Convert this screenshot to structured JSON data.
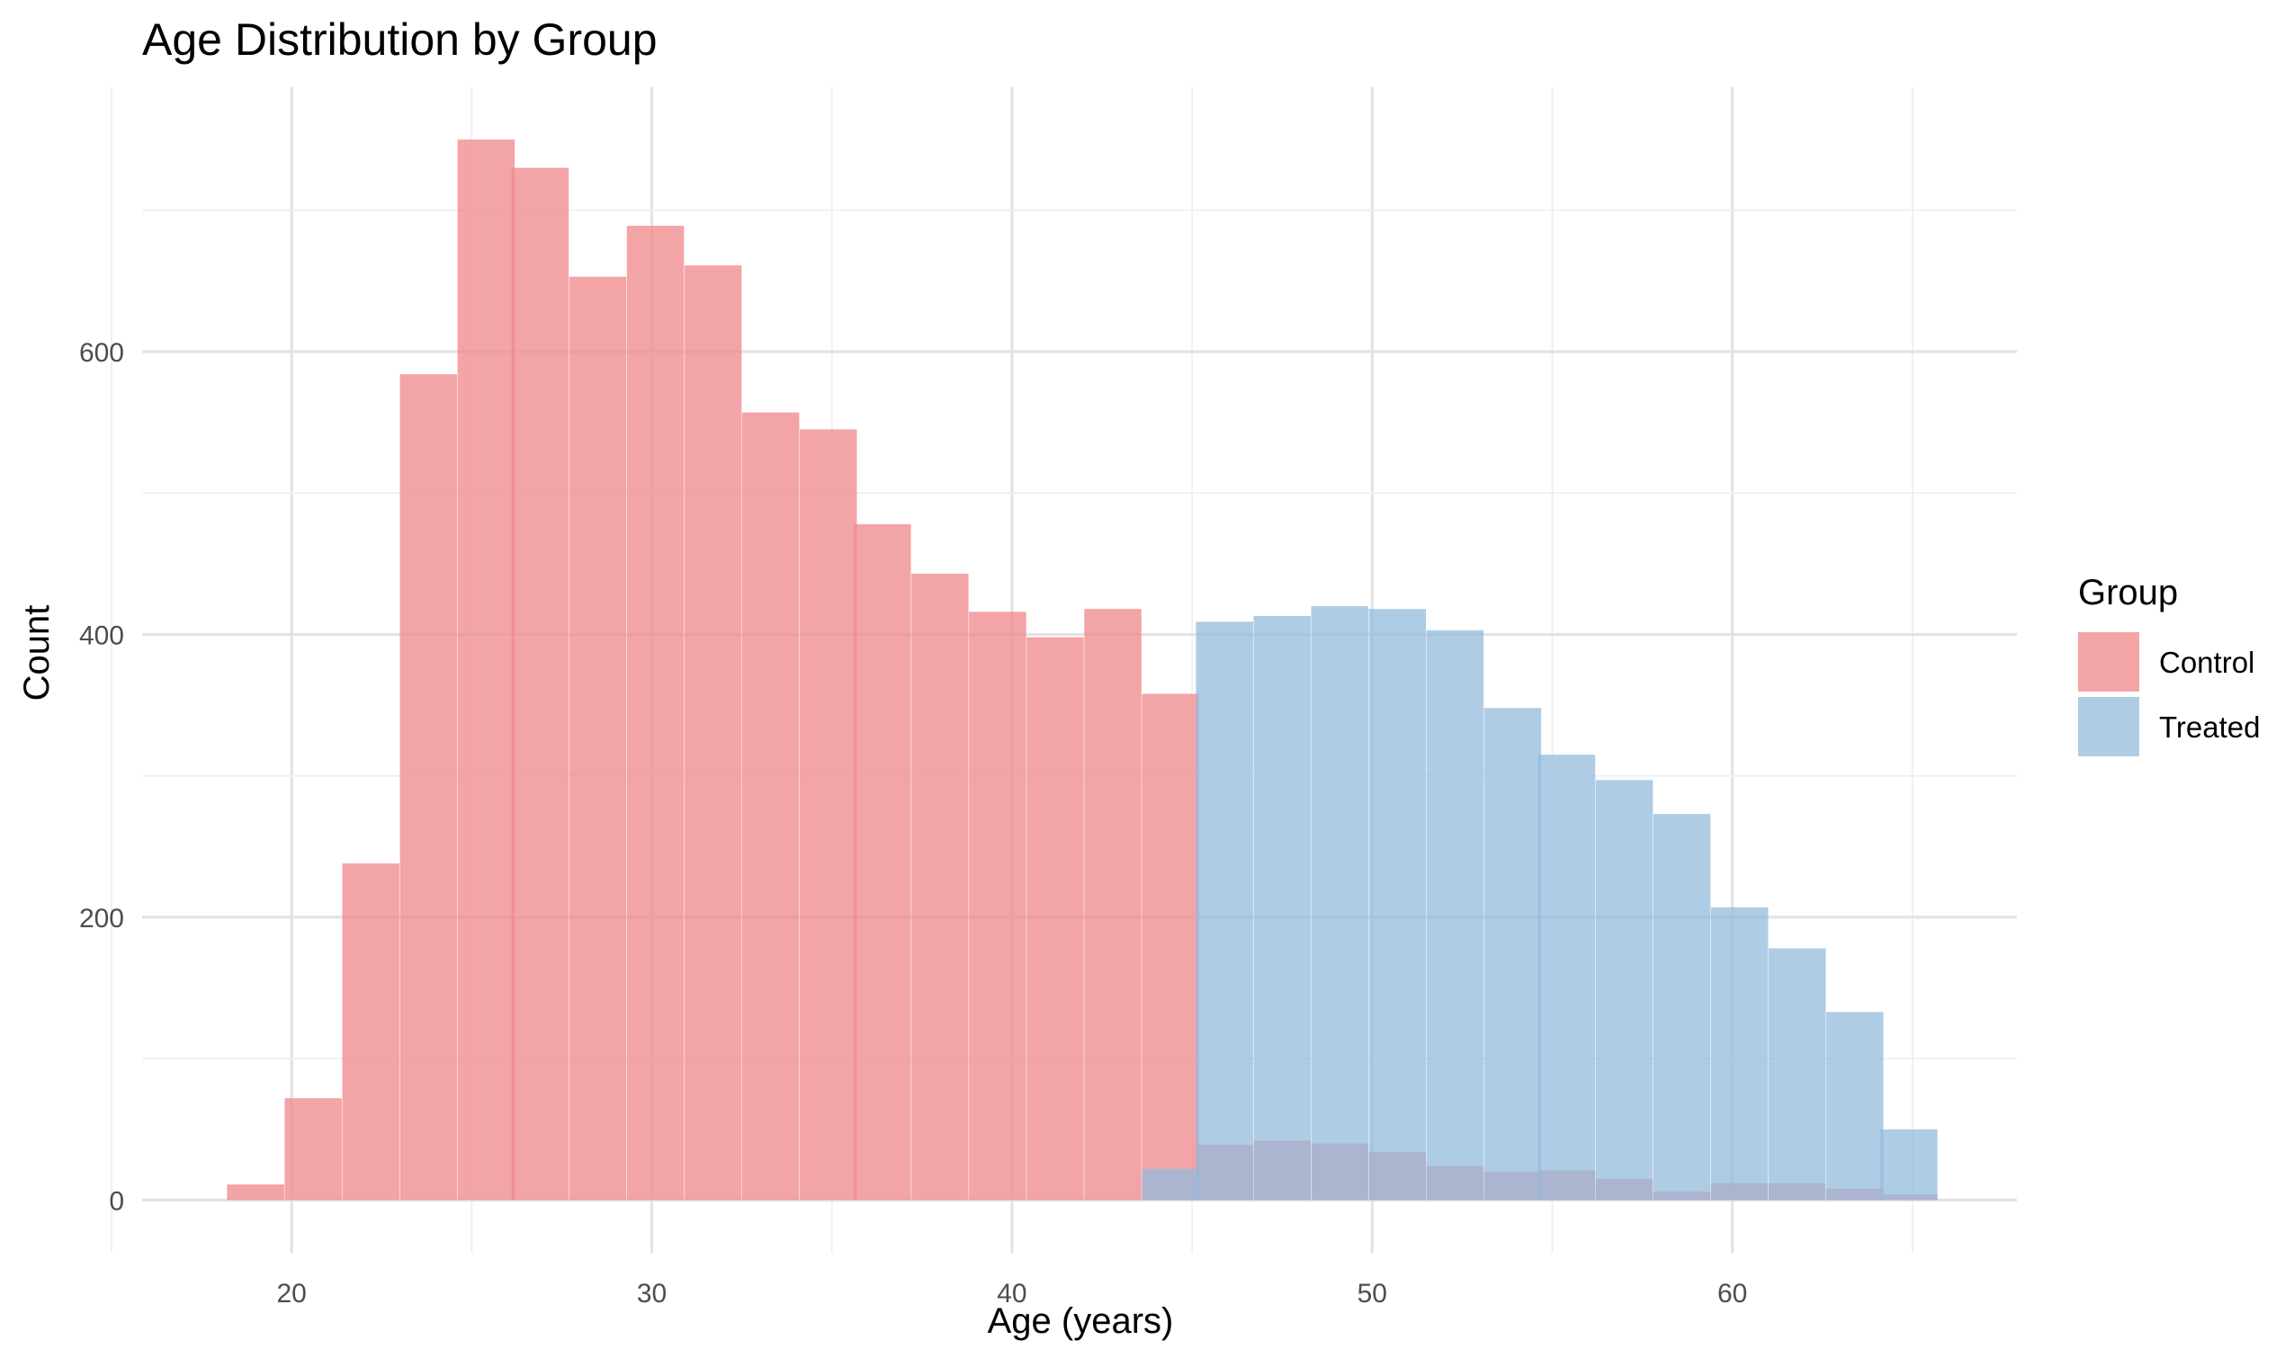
{
  "chart_data": {
    "type": "bar",
    "subtype": "overlaid-histogram",
    "title": "Age Distribution by Group",
    "xlabel": "Age (years)",
    "ylabel": "Count",
    "xlim": [
      15.85,
      67.9
    ],
    "ylim": [
      -37.3,
      787
    ],
    "x_ticks": [
      20,
      30,
      40,
      50,
      60
    ],
    "y_ticks": [
      0,
      200,
      400,
      600
    ],
    "grid": true,
    "legend": {
      "title": "Group",
      "position": "right"
    },
    "bin_width": 1.586,
    "series": [
      {
        "name": "Control",
        "color": "#ef8a8d",
        "opacity": 0.78,
        "bins": [
          {
            "x": 19.0,
            "count": 11
          },
          {
            "x": 20.6,
            "count": 72
          },
          {
            "x": 22.2,
            "count": 238
          },
          {
            "x": 23.8,
            "count": 584
          },
          {
            "x": 25.4,
            "count": 750
          },
          {
            "x": 26.9,
            "count": 730
          },
          {
            "x": 28.5,
            "count": 653
          },
          {
            "x": 30.1,
            "count": 689
          },
          {
            "x": 31.7,
            "count": 661
          },
          {
            "x": 33.3,
            "count": 557
          },
          {
            "x": 34.9,
            "count": 545
          },
          {
            "x": 36.4,
            "count": 478
          },
          {
            "x": 38.0,
            "count": 443
          },
          {
            "x": 39.6,
            "count": 416
          },
          {
            "x": 41.2,
            "count": 398
          },
          {
            "x": 42.8,
            "count": 418
          },
          {
            "x": 44.4,
            "count": 358
          },
          {
            "x": 45.9,
            "count": 39
          },
          {
            "x": 47.5,
            "count": 42
          },
          {
            "x": 49.1,
            "count": 40
          },
          {
            "x": 50.7,
            "count": 34
          },
          {
            "x": 52.3,
            "count": 24
          },
          {
            "x": 53.9,
            "count": 20
          },
          {
            "x": 55.4,
            "count": 21
          },
          {
            "x": 57.0,
            "count": 15
          },
          {
            "x": 58.6,
            "count": 6
          },
          {
            "x": 60.2,
            "count": 12
          },
          {
            "x": 61.8,
            "count": 12
          },
          {
            "x": 63.4,
            "count": 8
          },
          {
            "x": 64.9,
            "count": 4
          }
        ]
      },
      {
        "name": "Treated",
        "color": "#94bbdc",
        "opacity": 0.75,
        "bins": [
          {
            "x": 44.4,
            "count": 22
          },
          {
            "x": 45.9,
            "count": 409
          },
          {
            "x": 47.5,
            "count": 413
          },
          {
            "x": 49.1,
            "count": 420
          },
          {
            "x": 50.7,
            "count": 418
          },
          {
            "x": 52.3,
            "count": 403
          },
          {
            "x": 53.9,
            "count": 348
          },
          {
            "x": 55.4,
            "count": 315
          },
          {
            "x": 57.0,
            "count": 297
          },
          {
            "x": 58.6,
            "count": 273
          },
          {
            "x": 60.2,
            "count": 207
          },
          {
            "x": 61.8,
            "count": 178
          },
          {
            "x": 63.4,
            "count": 133
          },
          {
            "x": 64.9,
            "count": 50
          }
        ]
      }
    ]
  }
}
